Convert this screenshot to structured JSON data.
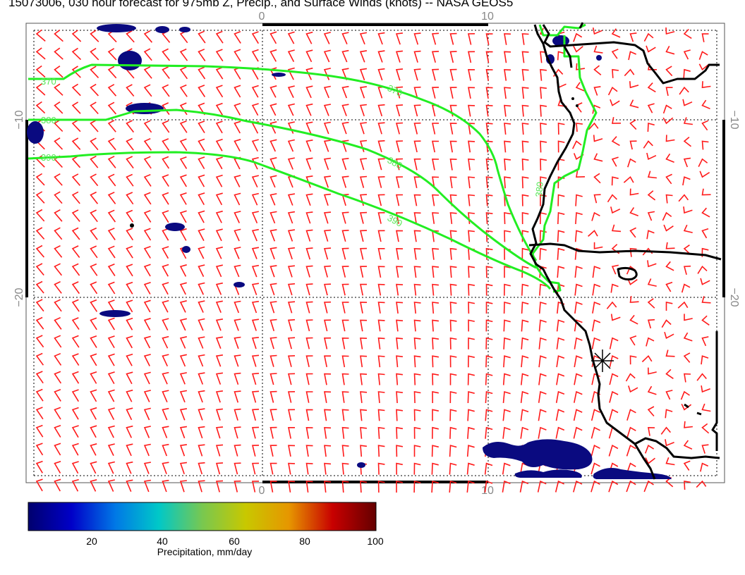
{
  "title": "15073006, 030 hour forecast for 975mb Z, Precip., and Surface Winds (knots) -- NASA GEOS5",
  "axes": {
    "top_ticks": [
      "0",
      "10"
    ],
    "bottom_ticks": [
      "0",
      "10"
    ],
    "left_ticks": [
      "−10",
      "−20"
    ],
    "right_ticks": [
      "−10",
      "−20"
    ]
  },
  "contours": {
    "color": "#22ee22",
    "labels": [
      "370",
      "380",
      "390"
    ]
  },
  "wind_barbs": {
    "color": "#ff1a1a"
  },
  "precip_color": "#0a0a80",
  "coastline_color": "#000000",
  "marker_icon": "asterisk-marker-icon",
  "colorbar": {
    "title": "Precipitation, mm/day",
    "ticks": [
      "20",
      "40",
      "60",
      "80",
      "100"
    ],
    "range": [
      0,
      100
    ],
    "stops": [
      "#00006e",
      "#0000c8",
      "#0078e6",
      "#00c8c8",
      "#78c850",
      "#c8c800",
      "#e69600",
      "#c80000",
      "#640000"
    ]
  }
}
